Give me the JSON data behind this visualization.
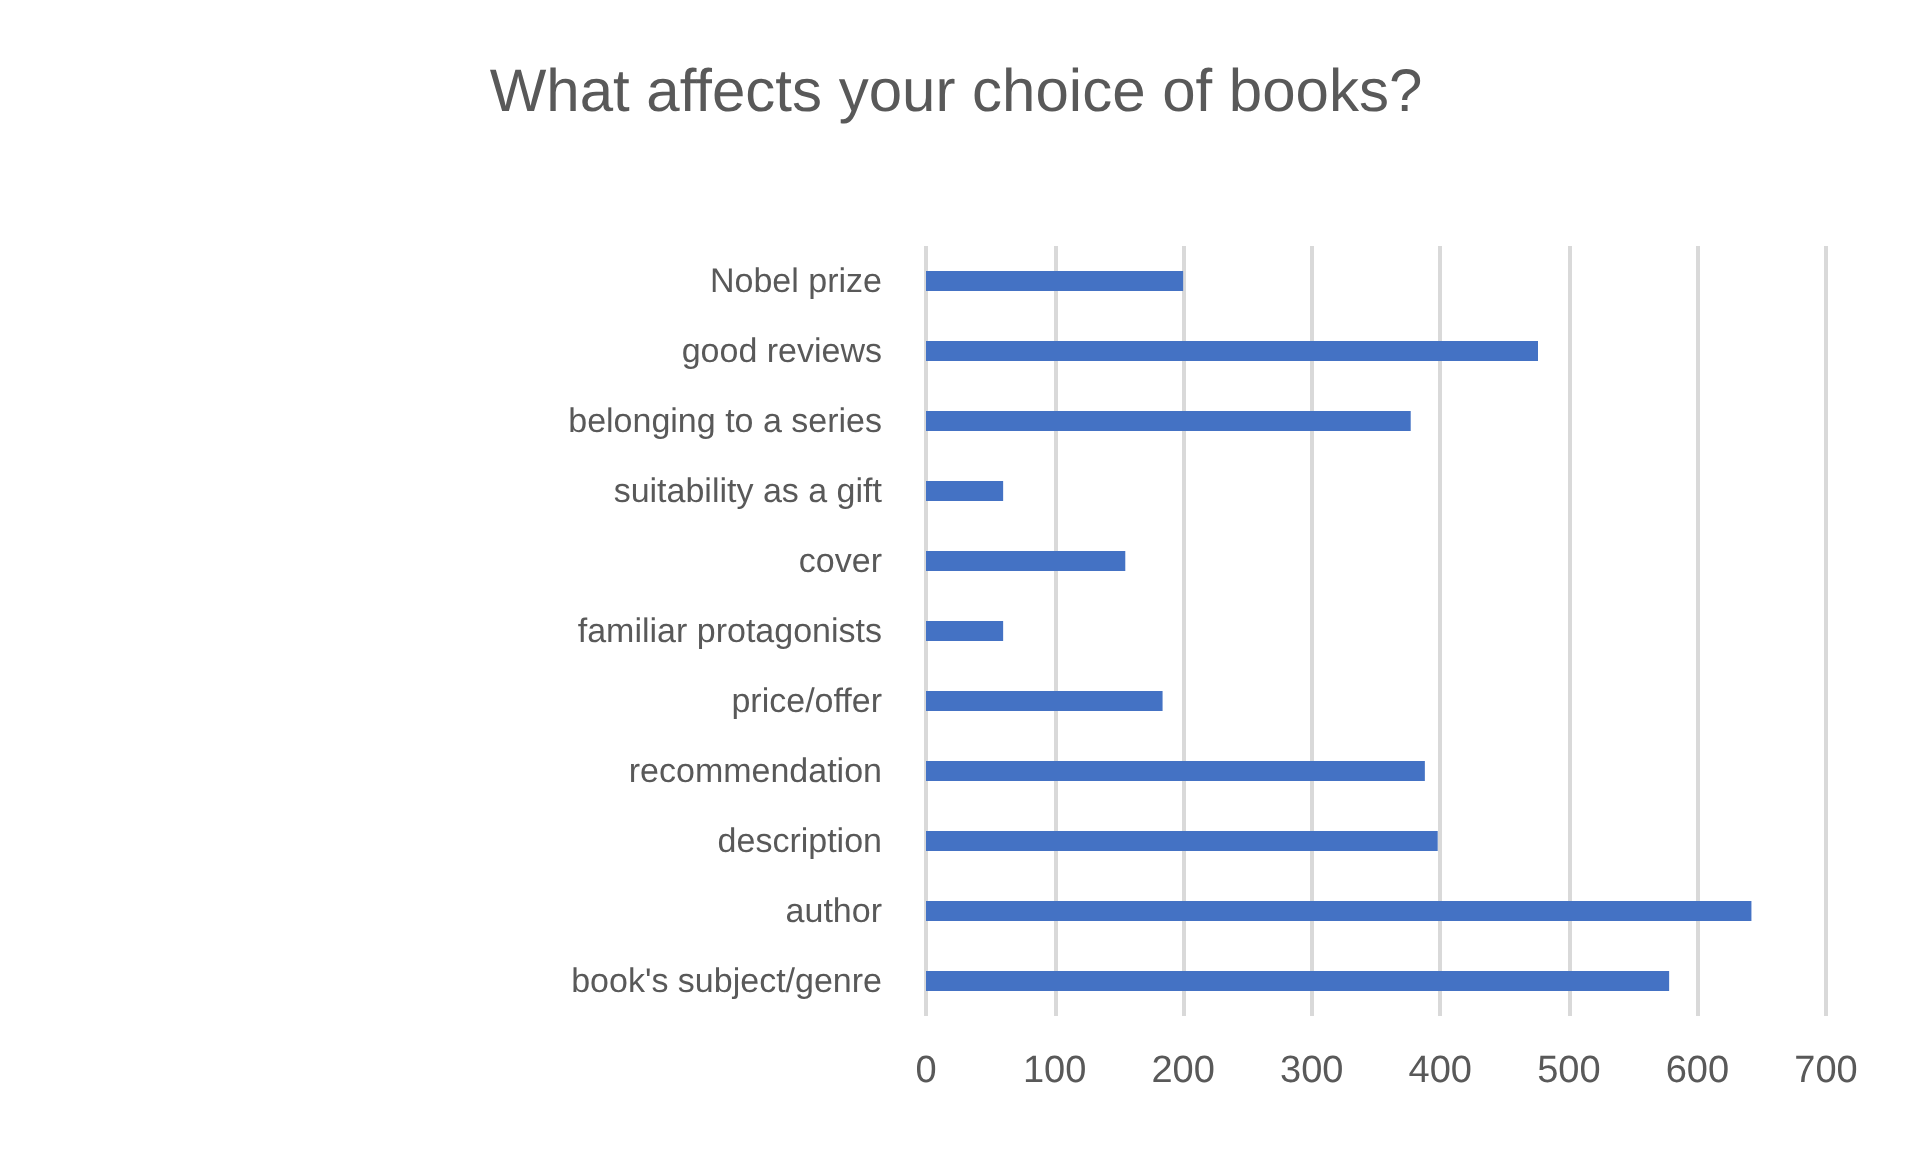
{
  "chart_data": {
    "type": "bar",
    "orientation": "horizontal",
    "title": "What affects your choice of books?",
    "categories": [
      "Nobel prize",
      "good reviews",
      "belonging to a series",
      "suitability as a gift",
      "cover",
      "familiar protagonists",
      "price/offer",
      "recommendation",
      "description",
      "author",
      "book's subject/genre"
    ],
    "values": [
      200,
      476,
      377,
      60,
      155,
      60,
      184,
      388,
      398,
      642,
      578
    ],
    "color": "#4472c4",
    "xlim": [
      0,
      700
    ],
    "xticks": [
      0,
      100,
      200,
      300,
      400,
      500,
      600,
      700
    ],
    "grid": "x"
  }
}
